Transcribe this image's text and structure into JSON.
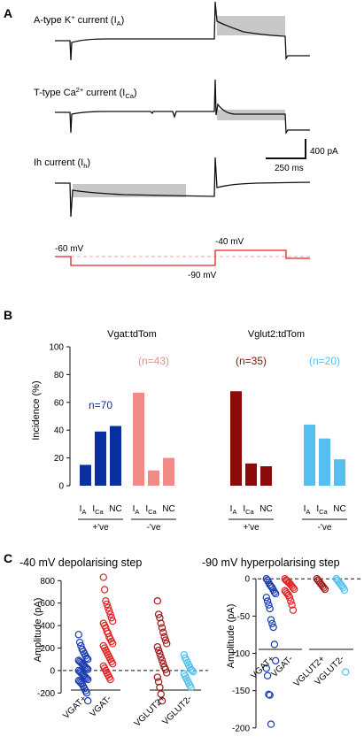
{
  "panelA": {
    "letter": "A",
    "traces": [
      {
        "label": "A-type K",
        "sup": "+",
        "mid": " current (I",
        "sub": "A",
        "end": ")"
      },
      {
        "label": "T-type Ca",
        "sup": "2+",
        "mid": " current (I",
        "sub": "Ca",
        "end": ")"
      },
      {
        "label": "Ih current (I",
        "sup": "",
        "mid": "",
        "sub": "h",
        "end": ")"
      }
    ],
    "scalebar": {
      "current": "400 pA",
      "time": "250 ms"
    },
    "protocol": {
      "hold": "-60 mV",
      "hyper": "-90 mV",
      "depol": "-40 mV"
    },
    "colors": {
      "trace": "#111111",
      "shade": "#c8c8c8",
      "protocol": "#e02424",
      "dashed": "#f2a4a0"
    }
  },
  "panelB": {
    "letter": "B",
    "ylabel": "Incidence (%)",
    "yticks": [
      "0",
      "20",
      "40",
      "60",
      "80",
      "100"
    ],
    "xcat": {
      "ia_main": "I",
      "ia_sub": "A",
      "ica_main": "I",
      "ica_sub": "Ca",
      "nc": "NC"
    },
    "groups": [
      {
        "title": "Vgat:tdTom",
        "pos": "+'ve",
        "neg": "-'ve"
      },
      {
        "title": "Vglut2:tdTom",
        "pos": "+'ve",
        "neg": "-'ve"
      }
    ]
  },
  "panelC": {
    "letter": "C",
    "left_title": "-40 mV depolarising step",
    "right_title": "-90 mV hyperpolarising step",
    "ylabel": "Amplitude (pA)",
    "left_yticks": [
      "-200",
      "0",
      "200",
      "400",
      "600",
      "800"
    ],
    "right_yticks": [
      "0",
      "-50",
      "-100",
      "-150",
      "-200"
    ],
    "groups": [
      "VGAT+",
      "VGAT-",
      "VGLUT2+",
      "VGLUT2-"
    ]
  },
  "chart_data": [
    {
      "type": "bar",
      "title": "Vgat:tdTom",
      "ylabel": "Incidence (%)",
      "ylim": [
        0,
        100
      ],
      "categories": [
        "IA",
        "ICa",
        "NC"
      ],
      "series": [
        {
          "name": "+'ve",
          "n_label": "n=70",
          "color": "#0a2fa0",
          "values": [
            15,
            39,
            43
          ]
        },
        {
          "name": "-'ve",
          "n_label": "(n=43)",
          "color": "#f28b85",
          "values": [
            67,
            11,
            20
          ]
        }
      ]
    },
    {
      "type": "bar",
      "title": "Vglut2:tdTom",
      "ylabel": "Incidence (%)",
      "ylim": [
        0,
        100
      ],
      "categories": [
        "IA",
        "ICa",
        "NC"
      ],
      "series": [
        {
          "name": "+'ve",
          "n_label": "(n=35)",
          "color": "#8b0a0a",
          "values": [
            68,
            16,
            14
          ]
        },
        {
          "name": "-'ve",
          "n_label": "(n=20)",
          "color": "#55c0f0",
          "values": [
            44,
            34,
            19
          ]
        }
      ]
    },
    {
      "type": "scatter",
      "title": "-40 mV depolarising step",
      "ylabel": "Amplitude (pA)",
      "ylim": [
        -300,
        850
      ],
      "categories": [
        "VGAT+",
        "VGAT-",
        "VGLUT2+",
        "VGLUT2-"
      ],
      "series": [
        {
          "name": "VGAT+",
          "color": "#1a3cb0",
          "values": [
            320,
            250,
            220,
            190,
            170,
            150,
            130,
            110,
            100,
            90,
            80,
            70,
            60,
            50,
            40,
            30,
            20,
            10,
            0,
            -10,
            -20,
            -30,
            -40,
            -50,
            -60,
            -70,
            -80,
            -90,
            -100,
            -110,
            -120,
            -140,
            -160,
            -180,
            -200,
            -270
          ]
        },
        {
          "name": "VGAT-",
          "color": "#e02424",
          "values": [
            830,
            720,
            620,
            590,
            560,
            530,
            500,
            470,
            440,
            420,
            400,
            380,
            350,
            330,
            300,
            280,
            260,
            240,
            220,
            200,
            180,
            160,
            140,
            120,
            100,
            80,
            60,
            40,
            20,
            0,
            -20,
            -40,
            -60,
            -80
          ]
        },
        {
          "name": "VGLUT2+",
          "color": "#a01818",
          "values": [
            620,
            500,
            470,
            420,
            380,
            340,
            300,
            270,
            240,
            210,
            180,
            150,
            120,
            90,
            60,
            30,
            10,
            -20,
            -60,
            -100,
            -150,
            -210,
            -270
          ]
        },
        {
          "name": "VGLUT2-",
          "color": "#55c0f0",
          "values": [
            140,
            110,
            90,
            70,
            50,
            30,
            10,
            0,
            -10,
            -30,
            -50,
            -70,
            -90,
            -110,
            -130,
            -150
          ]
        }
      ]
    },
    {
      "type": "scatter",
      "title": "-90 mV hyperpolarising step",
      "ylabel": "Amplitude (pA)",
      "ylim": [
        -205,
        5
      ],
      "categories": [
        "VGAT+",
        "VGAT-",
        "VGLUT2+",
        "VGLUT2-"
      ],
      "series": [
        {
          "name": "VGAT+",
          "color": "#1a3cb0",
          "values": [
            0,
            -2,
            -5,
            -8,
            -10,
            -12,
            -15,
            -18,
            -20,
            -25,
            -30,
            -35,
            -40,
            -55,
            -60,
            -65,
            -88,
            -110,
            -120,
            -130,
            -155,
            -156,
            -195
          ]
        },
        {
          "name": "VGAT-",
          "color": "#e02424",
          "values": [
            0,
            -2,
            -3,
            -5,
            -6,
            -8,
            -10,
            -12,
            -14,
            -16,
            -18,
            -20,
            -22,
            -25,
            -30,
            -35,
            -42
          ]
        },
        {
          "name": "VGLUT2+",
          "color": "#a01818",
          "values": [
            0,
            -2,
            -4,
            -6,
            -8,
            -10,
            -12,
            -14
          ]
        },
        {
          "name": "VGLUT2-",
          "color": "#55c0f0",
          "values": [
            0,
            -2,
            -4,
            -6,
            -8,
            -10,
            -12,
            -15,
            -125
          ]
        }
      ]
    }
  ]
}
